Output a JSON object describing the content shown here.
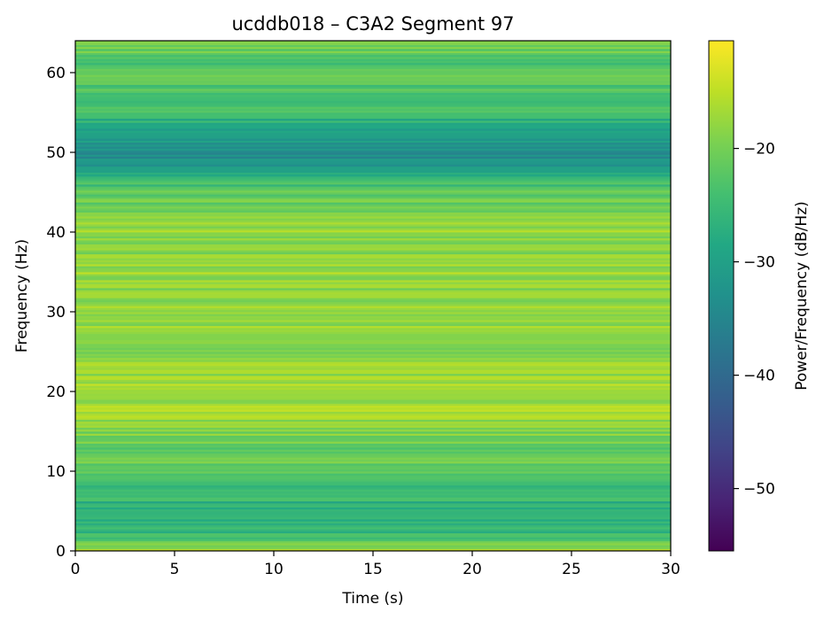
{
  "chart_data": {
    "type": "heatmap",
    "title": "ucddb018 – C3A2 Segment 97",
    "xlabel": "Time (s)",
    "ylabel": "Frequency (Hz)",
    "xlim": [
      0,
      30
    ],
    "ylim": [
      0,
      64
    ],
    "x_ticks": [
      0,
      5,
      10,
      15,
      20,
      25,
      30
    ],
    "y_ticks": [
      0,
      10,
      20,
      30,
      40,
      50,
      60
    ],
    "colormap": "viridis",
    "colorbar": {
      "label": "Power/Frequency (dB/Hz)",
      "range": [
        -55.5,
        -10.5
      ],
      "ticks": [
        -50,
        -40,
        -30,
        -20
      ]
    },
    "frequency_profile": {
      "frequency_hz": [
        0,
        1,
        2,
        3,
        4,
        5,
        6,
        7,
        8,
        9,
        10,
        11,
        12,
        13,
        14,
        15,
        16,
        17,
        18,
        19,
        20,
        21,
        22,
        23,
        24,
        25,
        26,
        27,
        28,
        29,
        30,
        31,
        32,
        33,
        34,
        35,
        36,
        37,
        38,
        39,
        40,
        41,
        42,
        43,
        44,
        45,
        46,
        47,
        48,
        49,
        50,
        51,
        52,
        53,
        54,
        55,
        56,
        57,
        58,
        59,
        60,
        61,
        62,
        63,
        64
      ],
      "power_db_hz": [
        -16,
        -20,
        -25,
        -27,
        -28,
        -26,
        -27,
        -24,
        -25,
        -23,
        -22,
        -21,
        -22,
        -21,
        -20,
        -19,
        -18,
        -17,
        -17,
        -18,
        -17,
        -17,
        -18,
        -17,
        -18,
        -18,
        -19,
        -18,
        -18,
        -19,
        -18,
        -18,
        -19,
        -19,
        -18,
        -17,
        -18,
        -19,
        -18,
        -18,
        -17,
        -18,
        -19,
        -20,
        -21,
        -22,
        -24,
        -28,
        -31,
        -33,
        -33,
        -32,
        -31,
        -29,
        -27,
        -25,
        -24,
        -23,
        -23,
        -22,
        -22,
        -23,
        -22,
        -21,
        -21
      ]
    }
  }
}
